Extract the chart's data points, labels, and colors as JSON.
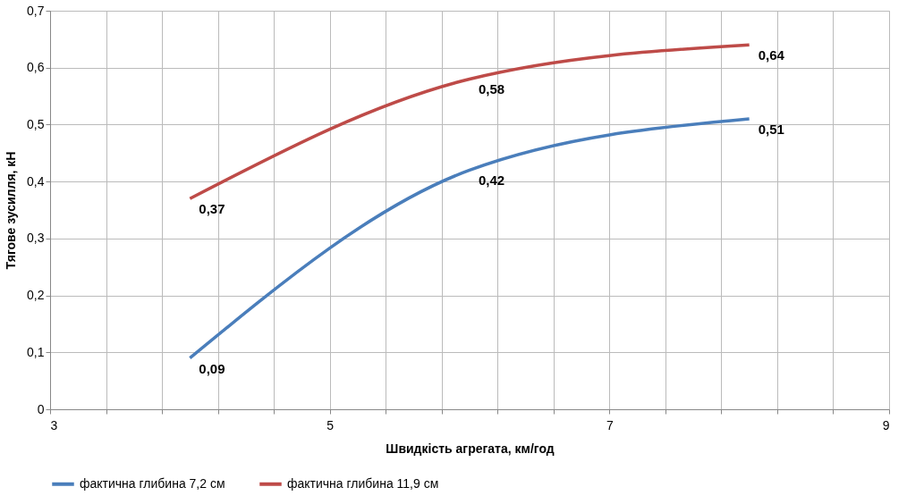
{
  "chart_data": {
    "type": "line",
    "xlabel": "Швидкість агрегата, км/год",
    "ylabel": "Тягове зусилля, кН",
    "x": [
      4,
      6,
      8
    ],
    "series": [
      {
        "name": "фактична глибина 7,2 см",
        "color": "#4a7ebb",
        "values": [
          0.09,
          0.42,
          0.51
        ],
        "value_labels": [
          "0,09",
          "0,42",
          "0,51"
        ]
      },
      {
        "name": "фактична глибина 11,9 см",
        "color": "#be4b48",
        "values": [
          0.37,
          0.58,
          0.64
        ],
        "value_labels": [
          "0,37",
          "0,58",
          "0,64"
        ]
      }
    ],
    "xlim": [
      3,
      9
    ],
    "xticks": [
      3,
      {
        "value": 3.4,
        "label": null
      },
      {
        "value": 3.8,
        "label": null
      },
      {
        "value": 4.2,
        "label": null
      },
      {
        "value": 4.6,
        "label": null
      },
      5,
      {
        "value": 5.4,
        "label": null
      },
      {
        "value": 5.8,
        "label": null
      },
      {
        "value": 6.2,
        "label": null
      },
      {
        "value": 6.6,
        "label": null
      },
      7,
      {
        "value": 7.4,
        "label": null
      },
      {
        "value": 7.8,
        "label": null
      },
      {
        "value": 8.2,
        "label": null
      },
      {
        "value": 8.6,
        "label": null
      },
      9
    ],
    "ylim": [
      0,
      0.7
    ],
    "yticks": [
      0,
      {
        "value": 0.1,
        "label": "0,1"
      },
      {
        "value": 0.2,
        "label": "0,2"
      },
      {
        "value": 0.3,
        "label": "0,3"
      },
      {
        "value": 0.4,
        "label": "0,4"
      },
      {
        "value": 0.5,
        "label": "0,5"
      },
      {
        "value": 0.6,
        "label": "0,6"
      },
      {
        "value": 0.7,
        "label": "0,7"
      }
    ],
    "grid": true,
    "legend": "bottom",
    "marker": "none",
    "line_style": "solid"
  }
}
